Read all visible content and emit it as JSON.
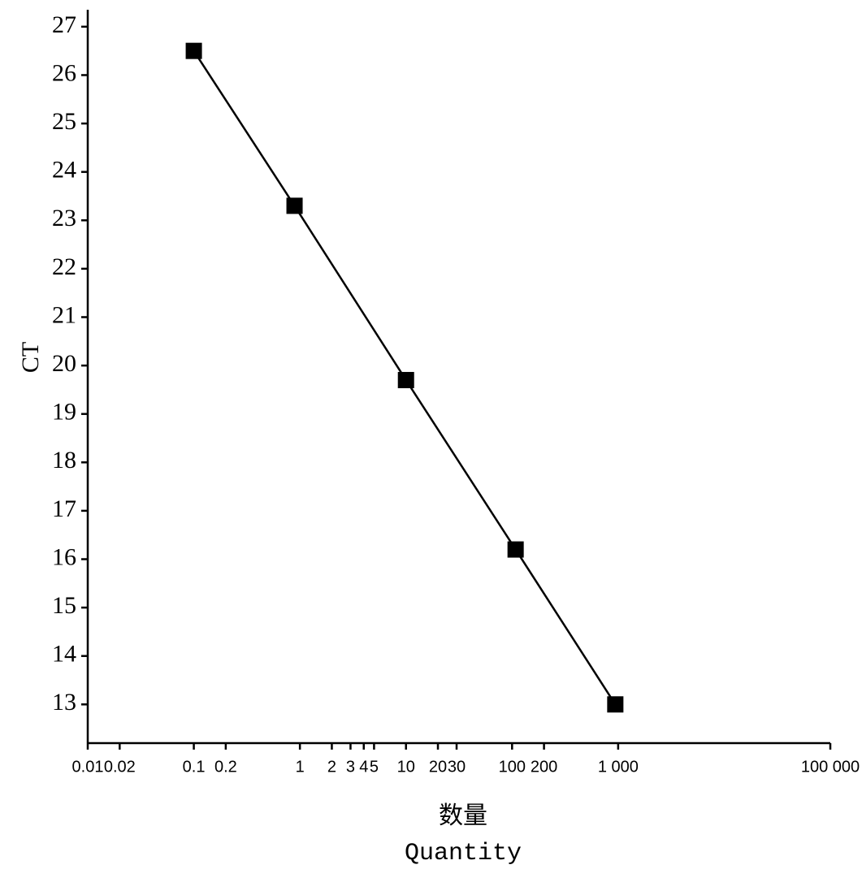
{
  "chart_data": {
    "type": "line",
    "xlabel_cn": "数量",
    "xlabel": "Quantity",
    "ylabel": "CT",
    "x": [
      0.1,
      0.89,
      10,
      108,
      940
    ],
    "series": [
      {
        "name": "CT",
        "color": "#000000",
        "values": [
          26.5,
          23.3,
          19.7,
          16.2,
          13.0
        ]
      }
    ],
    "xscale": "log",
    "xlim": [
      0.01,
      100000
    ],
    "xticks": [
      0.01,
      0.02,
      0.1,
      0.2,
      1,
      2,
      3,
      4,
      5,
      10,
      20,
      30,
      100,
      200,
      {
        "value": 1000,
        "label": "1 000"
      },
      {
        "value": 100000,
        "label": "100 000"
      }
    ],
    "ylim": [
      12.2,
      27.35
    ],
    "yticks": [
      13,
      14,
      15,
      16,
      17,
      18,
      19,
      20,
      21,
      22,
      23,
      24,
      25,
      26,
      27
    ]
  }
}
